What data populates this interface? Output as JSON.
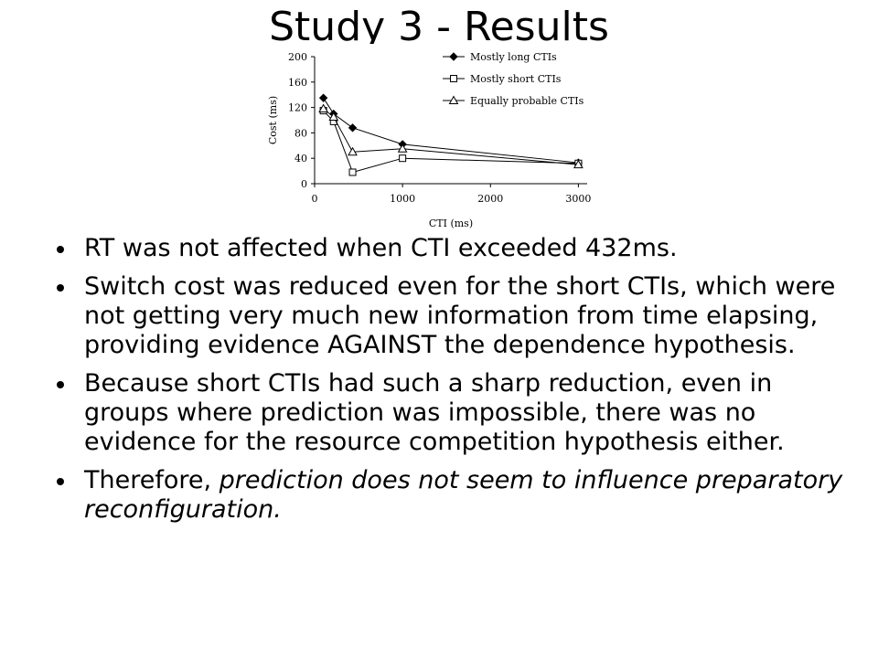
{
  "slide": {
    "title": "Study 3 - Results"
  },
  "chart_data": {
    "type": "line",
    "xlabel": "CTI (ms)",
    "ylabel": "Cost (ms)",
    "xlim": [
      0,
      3100
    ],
    "ylim": [
      0,
      200
    ],
    "xticks": [
      0,
      1000,
      2000,
      3000
    ],
    "yticks": [
      0,
      40,
      80,
      120,
      160,
      200
    ],
    "grid": false,
    "legend_position": "top-right",
    "x": [
      100,
      216,
      432,
      1000,
      3000
    ],
    "series": [
      {
        "name": "Mostly long CTIs",
        "marker": "diamond-filled",
        "values": [
          135,
          110,
          88,
          62,
          33
        ]
      },
      {
        "name": "Mostly short CTIs",
        "marker": "square-open",
        "values": [
          115,
          98,
          18,
          40,
          32
        ]
      },
      {
        "name": "Equally probable CTIs",
        "marker": "triangle-open",
        "values": [
          118,
          105,
          50,
          55,
          30
        ]
      }
    ]
  },
  "bullets": [
    {
      "text": "RT was not affected when CTI exceeded 432ms."
    },
    {
      "text": "Switch cost was reduced even for the short CTIs, which were not getting very much new information from time elapsing, providing evidence AGAINST the dependence hypothesis."
    },
    {
      "text": "Because short CTIs had such a sharp reduction, even in groups where prediction was impossible, there was no evidence for the resource competition hypothesis either."
    },
    {
      "prefix": "Therefore, ",
      "emphasis": "prediction does not seem to influence preparatory reconfiguration."
    }
  ]
}
